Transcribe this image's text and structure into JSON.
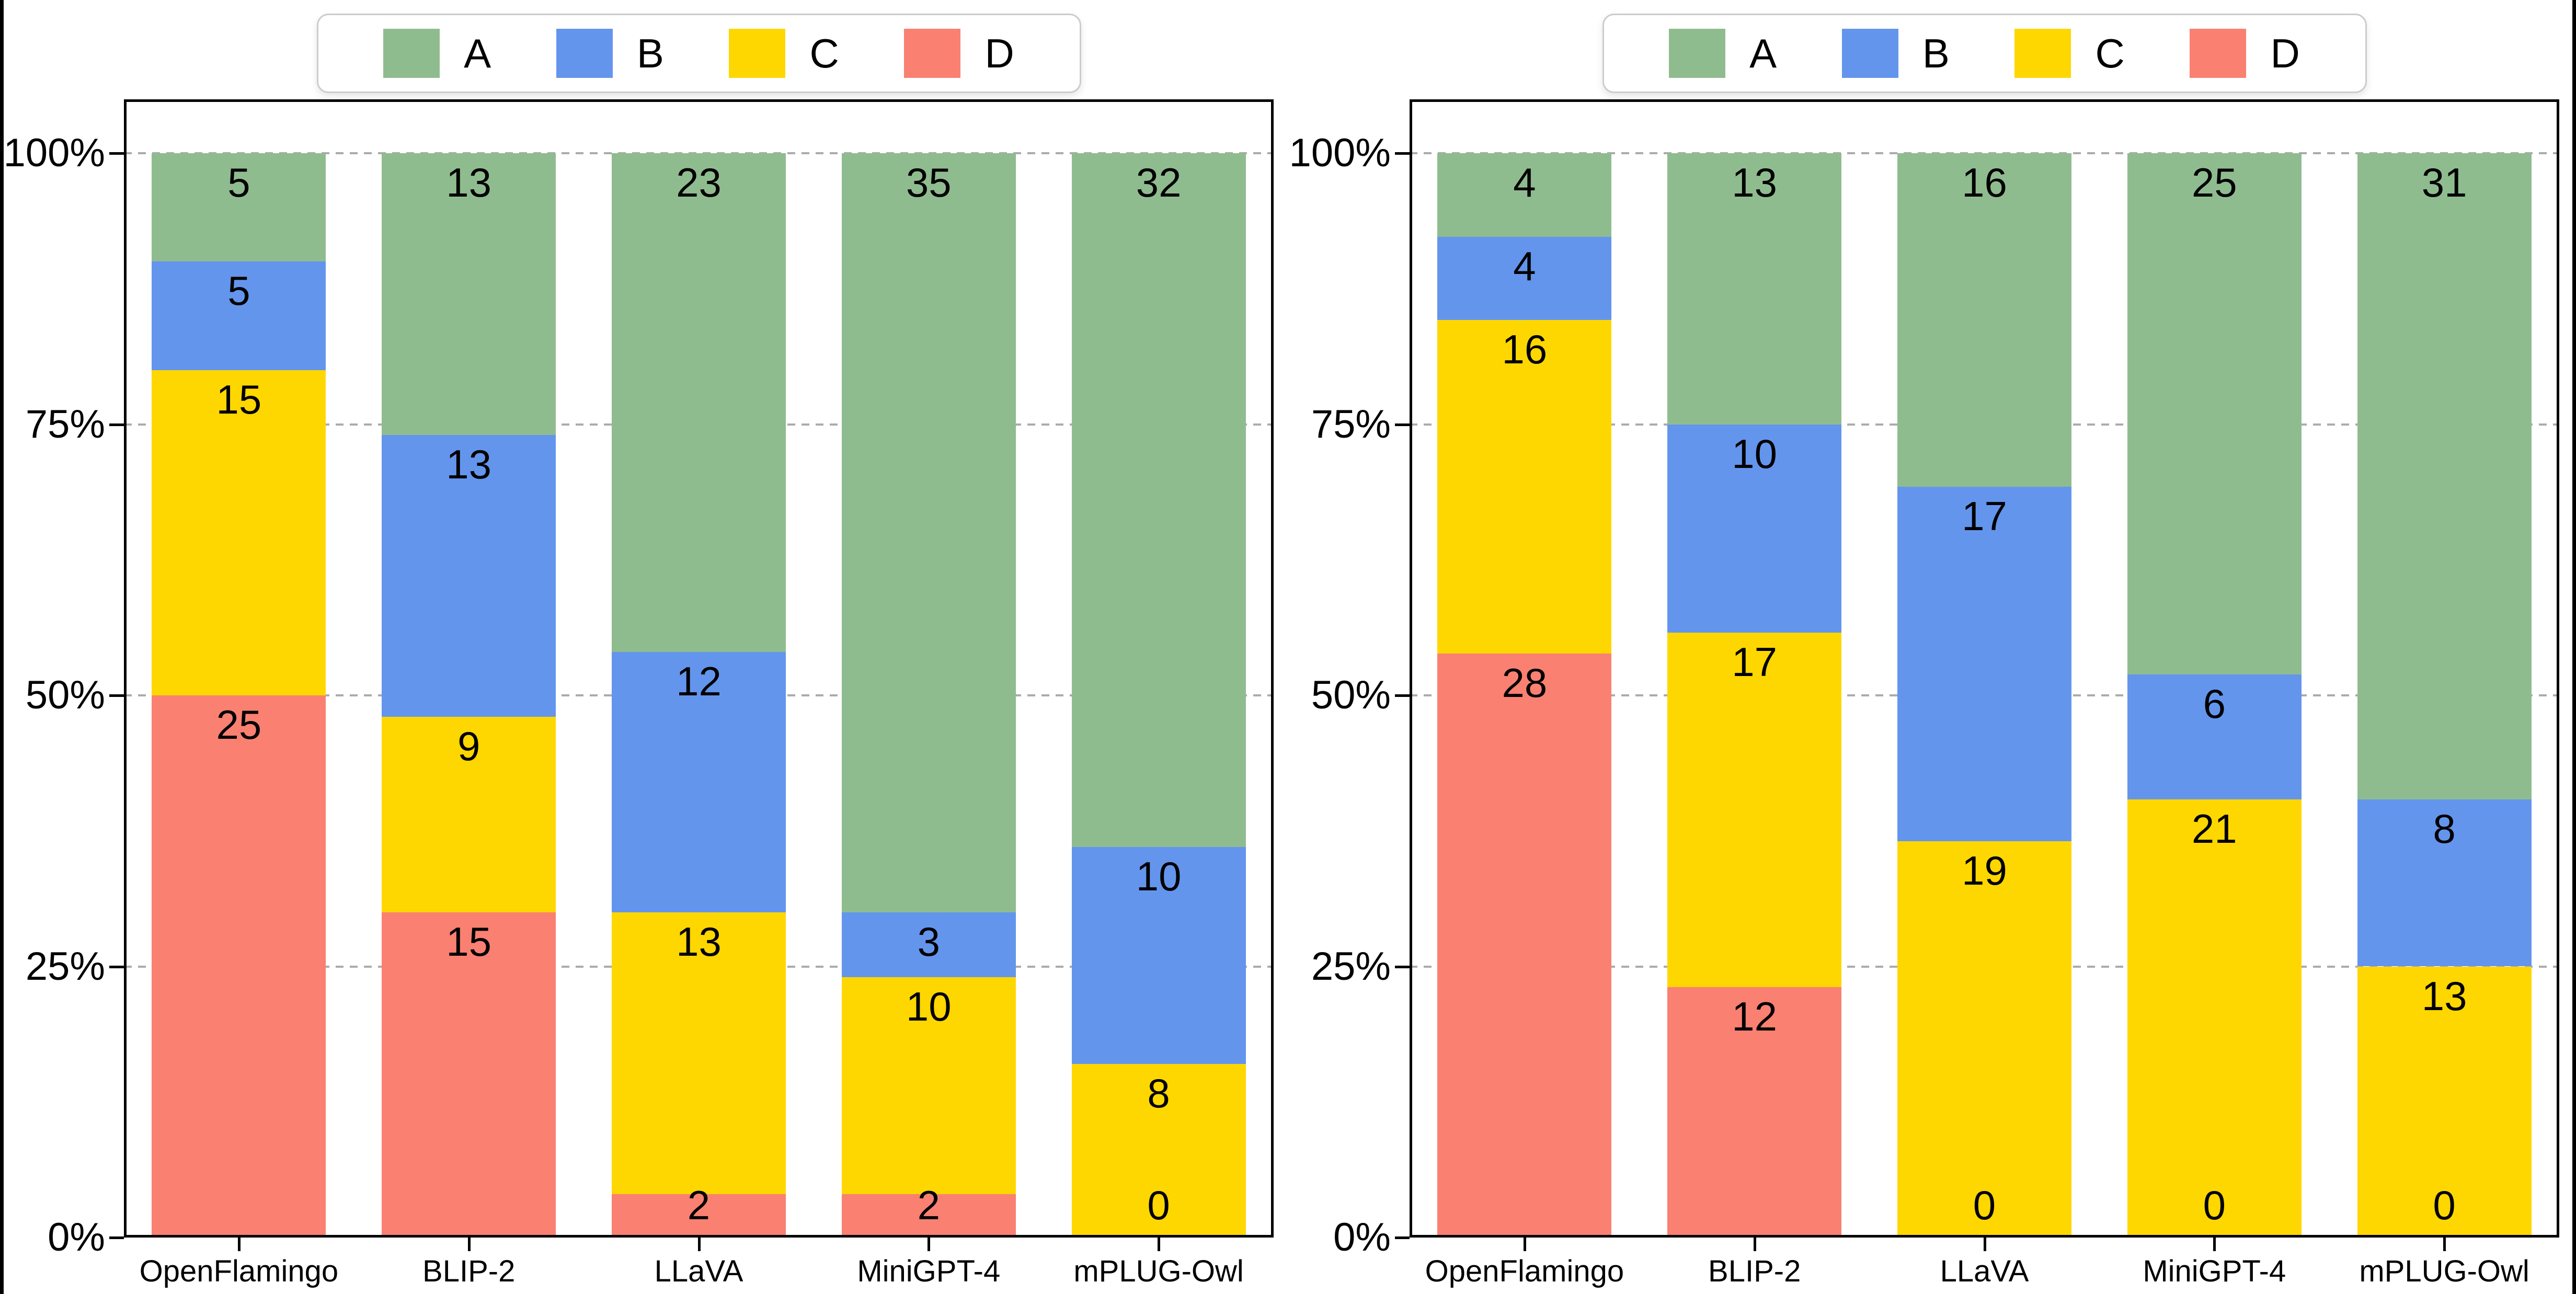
{
  "figure": {
    "background": "#ffffff",
    "side_frame_color": "#000000",
    "text_color": "#000000",
    "gridline_color": "#ababab",
    "legend_border_color": "#cccccc"
  },
  "chart_data": [
    {
      "type": "bar",
      "variant": "stacked-percent-column",
      "title": "",
      "xlabel": "",
      "ylabel": "",
      "categories": [
        "OpenFlamingo",
        "BLIP-2",
        "LLaVA",
        "MiniGPT-4",
        "mPLUG-Owl"
      ],
      "series": [
        {
          "name": "A",
          "color": "#8fbc8f",
          "values": [
            5,
            13,
            23,
            35,
            32
          ]
        },
        {
          "name": "B",
          "color": "#6495ed",
          "values": [
            5,
            13,
            12,
            3,
            10
          ]
        },
        {
          "name": "C",
          "color": "#ffd700",
          "values": [
            15,
            9,
            13,
            10,
            8
          ]
        },
        {
          "name": "D",
          "color": "#fa8072",
          "values": [
            25,
            15,
            2,
            2,
            0
          ]
        }
      ],
      "stack_order_bottom_to_top": [
        "D",
        "C",
        "B",
        "A"
      ],
      "totals_per_category": [
        50,
        50,
        50,
        50,
        50
      ],
      "ytick_labels": [
        "0%",
        "25%",
        "50%",
        "75%",
        "100%"
      ],
      "ylim": [
        0,
        105
      ],
      "grid": "dashed-horizontal",
      "legend": {
        "position": "top-center",
        "labels": [
          "A",
          "B",
          "C",
          "D"
        ]
      }
    },
    {
      "type": "bar",
      "variant": "stacked-percent-column",
      "title": "",
      "xlabel": "",
      "ylabel": "",
      "categories": [
        "OpenFlamingo",
        "BLIP-2",
        "LLaVA",
        "MiniGPT-4",
        "mPLUG-Owl"
      ],
      "series": [
        {
          "name": "A",
          "color": "#8fbc8f",
          "values": [
            4,
            13,
            16,
            25,
            31
          ]
        },
        {
          "name": "B",
          "color": "#6495ed",
          "values": [
            4,
            10,
            17,
            6,
            8
          ]
        },
        {
          "name": "C",
          "color": "#ffd700",
          "values": [
            16,
            17,
            19,
            21,
            13
          ]
        },
        {
          "name": "D",
          "color": "#fa8072",
          "values": [
            28,
            12,
            0,
            0,
            0
          ]
        }
      ],
      "stack_order_bottom_to_top": [
        "D",
        "C",
        "B",
        "A"
      ],
      "totals_per_category": [
        52,
        52,
        52,
        52,
        52
      ],
      "ytick_labels": [
        "0%",
        "25%",
        "50%",
        "75%",
        "100%"
      ],
      "ylim": [
        0,
        105
      ],
      "grid": "dashed-horizontal",
      "legend": {
        "position": "top-center",
        "labels": [
          "A",
          "B",
          "C",
          "D"
        ]
      }
    }
  ]
}
